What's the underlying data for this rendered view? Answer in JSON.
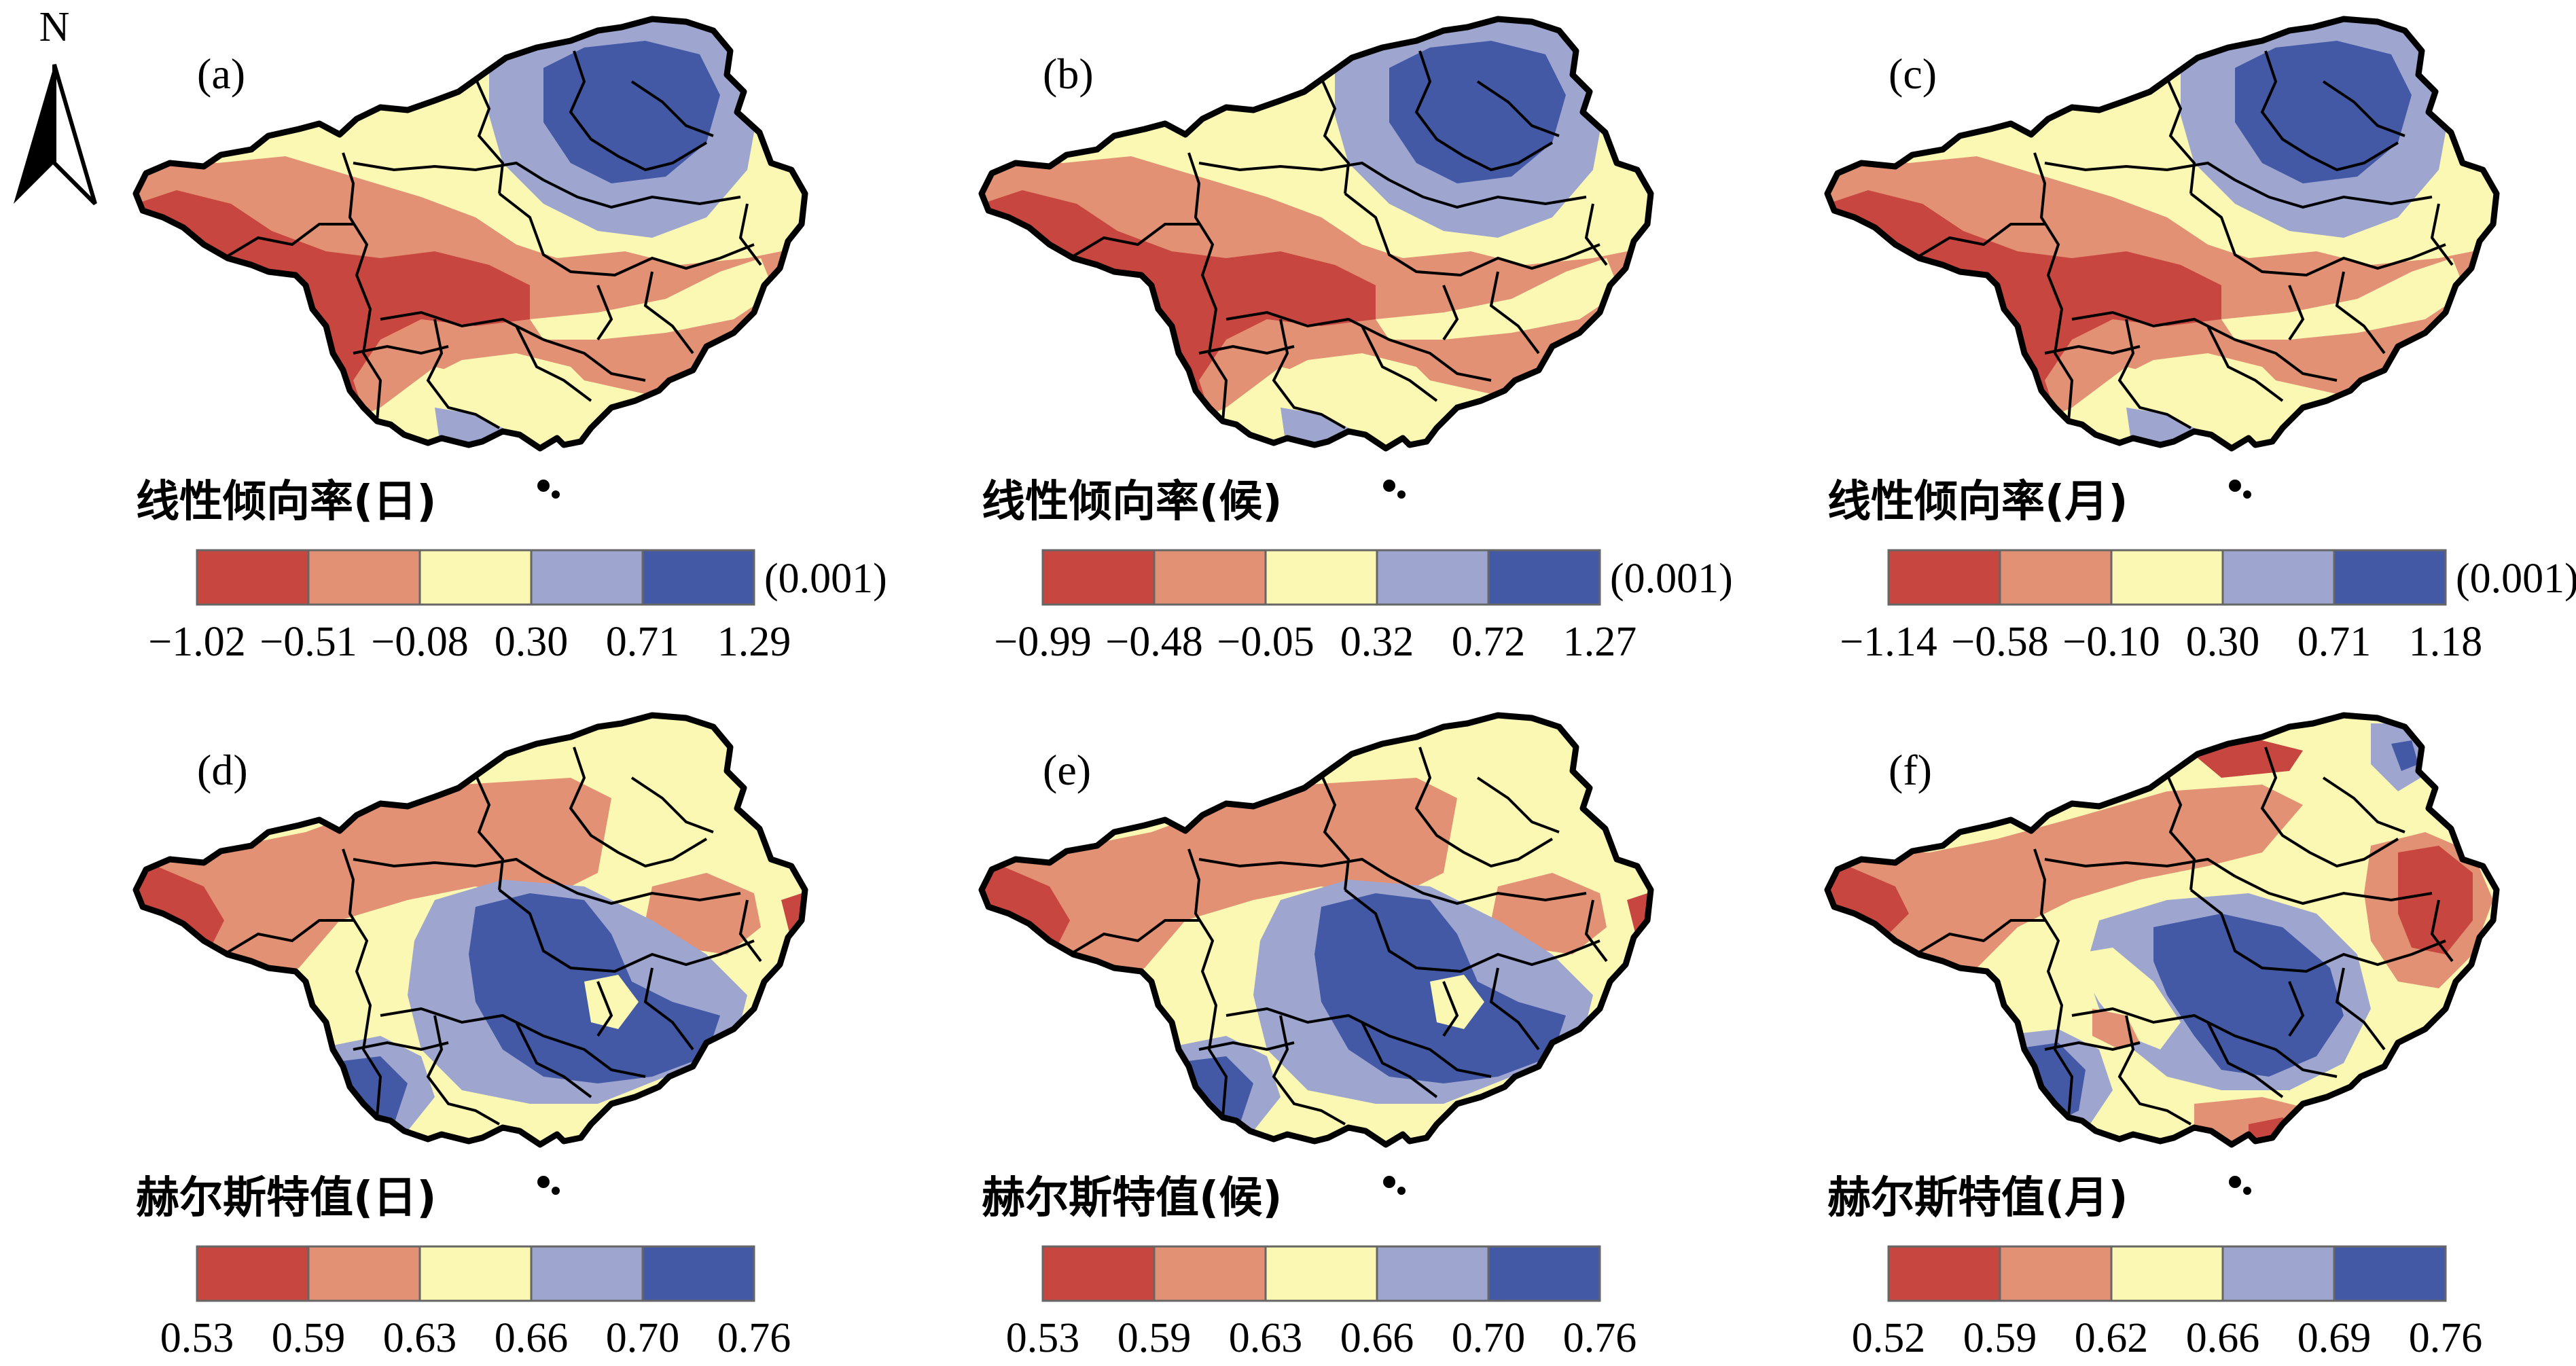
{
  "north_arrow": {
    "label": "N"
  },
  "colors": {
    "class1": "#c7463f",
    "class2": "#e39175",
    "class3": "#fbf8b3",
    "class4": "#9ea5cf",
    "class5": "#4359a6",
    "boundary": "#000000"
  },
  "panels": [
    {
      "label": "(a)",
      "type": "trend",
      "pattern": "trend",
      "legend": {
        "title": "线性倾向率(日)",
        "unit": "(0.001)",
        "ticks": [
          "−1.02",
          "−0.51",
          "−0.08",
          "0.30",
          "0.71",
          "1.29"
        ]
      }
    },
    {
      "label": "(b)",
      "type": "trend",
      "pattern": "trend",
      "legend": {
        "title": "线性倾向率(候)",
        "unit": "(0.001)",
        "ticks": [
          "−0.99",
          "−0.48",
          "−0.05",
          "0.32",
          "0.72",
          "1.27"
        ]
      }
    },
    {
      "label": "(c)",
      "type": "trend",
      "pattern": "trend",
      "legend": {
        "title": "线性倾向率(月)",
        "unit": "(0.001)",
        "ticks": [
          "−1.14",
          "−0.58",
          "−0.10",
          "0.30",
          "0.71",
          "1.18"
        ]
      }
    },
    {
      "label": "(d)",
      "type": "hurst",
      "pattern": "hurst_de",
      "legend": {
        "title": "赫尔斯特值(日)",
        "unit": "",
        "ticks": [
          "0.53",
          "0.59",
          "0.63",
          "0.66",
          "0.70",
          "0.76"
        ]
      }
    },
    {
      "label": "(e)",
      "type": "hurst",
      "pattern": "hurst_de",
      "legend": {
        "title": "赫尔斯特值(候)",
        "unit": "",
        "ticks": [
          "0.53",
          "0.59",
          "0.63",
          "0.66",
          "0.70",
          "0.76"
        ]
      }
    },
    {
      "label": "(f)",
      "type": "hurst",
      "pattern": "hurst_f",
      "legend": {
        "title": "赫尔斯特值(月)",
        "unit": "",
        "ticks": [
          "0.52",
          "0.59",
          "0.62",
          "0.66",
          "0.69",
          "0.76"
        ]
      }
    }
  ]
}
